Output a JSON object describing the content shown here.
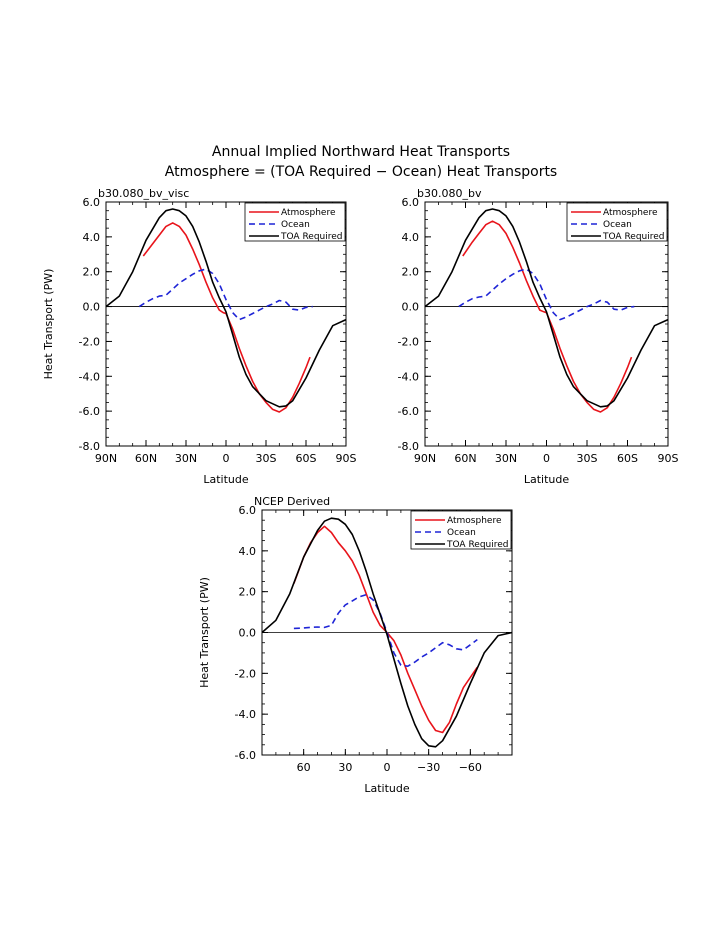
{
  "figure": {
    "title_line1": "Annual Implied Northward Heat Transports",
    "title_line2": "Atmosphere = (TOA Required − Ocean) Heat Transports"
  },
  "colors": {
    "atmosphere": "#e8141b",
    "ocean": "#1f25d6",
    "toa": "#000000",
    "zero_line": "#000000"
  },
  "chart_data": [
    {
      "type": "line",
      "title": "b30.080_bv_visc",
      "xlabel": "Latitude",
      "ylabel": "Heat Transport (PW)",
      "x_direction": "north-to-south",
      "xlim": [
        90,
        -90
      ],
      "ylim": [
        -8.0,
        6.0
      ],
      "x_ticks": [
        90,
        60,
        30,
        0,
        -30,
        -60,
        -90
      ],
      "x_tick_labels": [
        "90N",
        "60N",
        "30N",
        "0",
        "30S",
        "60S",
        "90S"
      ],
      "y_ticks": [
        6,
        4,
        2,
        0,
        -2,
        -4,
        -6,
        -8
      ],
      "y_tick_labels": [
        "6.0",
        "4.0",
        "2.0",
        "0.0",
        "-2.0",
        "-4.0",
        "-6.0",
        "-8.0"
      ],
      "legend_position": "top-right",
      "series": [
        {
          "name": "Atmosphere",
          "style": "solid",
          "x": [
            62,
            55,
            50,
            45,
            40,
            35,
            30,
            25,
            20,
            15,
            10,
            5,
            2,
            0,
            -5,
            -10,
            -15,
            -20,
            -25,
            -30,
            -35,
            -40,
            -45,
            -50,
            -55,
            -60,
            -63
          ],
          "y": [
            2.9,
            3.6,
            4.1,
            4.6,
            4.8,
            4.6,
            4.1,
            3.3,
            2.4,
            1.4,
            0.5,
            -0.2,
            -0.35,
            -0.4,
            -1.3,
            -2.4,
            -3.4,
            -4.3,
            -5.0,
            -5.5,
            -5.9,
            -6.05,
            -5.8,
            -5.2,
            -4.4,
            -3.5,
            -2.9
          ]
        },
        {
          "name": "Ocean",
          "style": "dashed",
          "x": [
            65,
            60,
            55,
            50,
            45,
            40,
            35,
            30,
            25,
            20,
            15,
            10,
            5,
            0,
            -5,
            -10,
            -15,
            -20,
            -25,
            -30,
            -35,
            -40,
            -45,
            -50,
            -55,
            -60,
            -65
          ],
          "y": [
            0.0,
            0.25,
            0.45,
            0.6,
            0.65,
            1.0,
            1.35,
            1.6,
            1.85,
            2.05,
            2.15,
            1.9,
            1.3,
            0.4,
            -0.35,
            -0.75,
            -0.6,
            -0.4,
            -0.2,
            0.0,
            0.15,
            0.35,
            0.25,
            -0.15,
            -0.2,
            -0.05,
            0.0
          ]
        },
        {
          "name": "TOA Required",
          "style": "solid",
          "x": [
            90,
            80,
            70,
            60,
            50,
            45,
            40,
            35,
            30,
            25,
            20,
            15,
            10,
            5,
            0,
            -5,
            -10,
            -15,
            -20,
            -30,
            -40,
            -45,
            -50,
            -60,
            -70,
            -80,
            -90
          ],
          "y": [
            0.0,
            0.6,
            2.0,
            3.8,
            5.1,
            5.5,
            5.6,
            5.5,
            5.2,
            4.6,
            3.7,
            2.6,
            1.4,
            0.5,
            -0.3,
            -1.6,
            -2.9,
            -3.9,
            -4.6,
            -5.4,
            -5.75,
            -5.7,
            -5.4,
            -4.1,
            -2.5,
            -1.1,
            -0.75
          ]
        }
      ]
    },
    {
      "type": "line",
      "title": "b30.080_bv",
      "xlabel": "Latitude",
      "ylabel": "",
      "x_direction": "north-to-south",
      "xlim": [
        90,
        -90
      ],
      "ylim": [
        -8.0,
        6.0
      ],
      "x_ticks": [
        90,
        60,
        30,
        0,
        -30,
        -60,
        -90
      ],
      "x_tick_labels": [
        "90N",
        "60N",
        "30N",
        "0",
        "30S",
        "60S",
        "90S"
      ],
      "y_ticks": [
        6,
        4,
        2,
        0,
        -2,
        -4,
        -6,
        -8
      ],
      "y_tick_labels": [
        "6.0",
        "4.0",
        "2.0",
        "0.0",
        "-2.0",
        "-4.0",
        "-6.0",
        "-8.0"
      ],
      "legend_position": "top-right",
      "series": [
        {
          "name": "Atmosphere",
          "style": "solid",
          "x": [
            62,
            55,
            50,
            45,
            40,
            35,
            30,
            25,
            20,
            15,
            10,
            5,
            2,
            0,
            -5,
            -10,
            -15,
            -20,
            -25,
            -30,
            -35,
            -40,
            -45,
            -50,
            -55,
            -60,
            -63
          ],
          "y": [
            2.9,
            3.7,
            4.2,
            4.7,
            4.9,
            4.7,
            4.2,
            3.4,
            2.5,
            1.5,
            0.6,
            -0.2,
            -0.3,
            -0.35,
            -1.3,
            -2.4,
            -3.4,
            -4.3,
            -5.0,
            -5.5,
            -5.9,
            -6.05,
            -5.8,
            -5.2,
            -4.4,
            -3.5,
            -2.9
          ]
        },
        {
          "name": "Ocean",
          "style": "dashed",
          "x": [
            65,
            60,
            55,
            50,
            45,
            40,
            35,
            30,
            25,
            20,
            15,
            10,
            5,
            0,
            -5,
            -10,
            -15,
            -20,
            -25,
            -30,
            -35,
            -40,
            -45,
            -50,
            -55,
            -60,
            -65
          ],
          "y": [
            0.0,
            0.25,
            0.45,
            0.55,
            0.6,
            0.95,
            1.3,
            1.6,
            1.85,
            2.05,
            2.15,
            1.9,
            1.3,
            0.4,
            -0.35,
            -0.75,
            -0.6,
            -0.4,
            -0.2,
            0.0,
            0.15,
            0.35,
            0.25,
            -0.15,
            -0.2,
            -0.05,
            0.0
          ]
        },
        {
          "name": "TOA Required",
          "style": "solid",
          "x": [
            90,
            80,
            70,
            60,
            50,
            45,
            40,
            35,
            30,
            25,
            20,
            15,
            10,
            5,
            0,
            -5,
            -10,
            -15,
            -20,
            -30,
            -40,
            -45,
            -50,
            -60,
            -70,
            -80,
            -90
          ],
          "y": [
            0.0,
            0.6,
            2.0,
            3.8,
            5.1,
            5.5,
            5.6,
            5.5,
            5.2,
            4.6,
            3.7,
            2.6,
            1.4,
            0.5,
            -0.3,
            -1.6,
            -2.9,
            -3.9,
            -4.6,
            -5.4,
            -5.75,
            -5.7,
            -5.4,
            -4.1,
            -2.5,
            -1.1,
            -0.75
          ]
        }
      ]
    },
    {
      "type": "line",
      "title": "NCEP Derived",
      "xlabel": "Latitude",
      "ylabel": "Heat Transport (PW)",
      "x_direction": "north-to-south",
      "xlim": [
        90,
        -90
      ],
      "ylim": [
        -6.0,
        6.0
      ],
      "x_ticks": [
        60,
        30,
        0,
        -30,
        -60
      ],
      "x_tick_labels": [
        "60",
        "30",
        "0",
        "−30",
        "−60"
      ],
      "y_ticks": [
        6,
        4,
        2,
        0,
        -2,
        -4,
        -6
      ],
      "y_tick_labels": [
        "6.0",
        "4.0",
        "2.0",
        "0.0",
        "-2.0",
        "-4.0",
        "-6.0"
      ],
      "legend_position": "top-right",
      "series": [
        {
          "name": "Atmosphere",
          "style": "solid",
          "x": [
            67,
            60,
            55,
            50,
            45,
            40,
            35,
            30,
            25,
            20,
            15,
            10,
            5,
            0,
            -5,
            -10,
            -15,
            -20,
            -25,
            -30,
            -35,
            -40,
            -45,
            -50,
            -55,
            -60,
            -65
          ],
          "y": [
            2.4,
            3.7,
            4.4,
            4.9,
            5.2,
            4.9,
            4.4,
            4.0,
            3.5,
            2.8,
            1.9,
            1.0,
            0.35,
            0.0,
            -0.4,
            -1.1,
            -2.0,
            -2.8,
            -3.6,
            -4.3,
            -4.8,
            -4.9,
            -4.4,
            -3.5,
            -2.7,
            -2.2,
            -1.7
          ]
        },
        {
          "name": "Ocean",
          "style": "dashed",
          "x": [
            67,
            60,
            55,
            50,
            45,
            40,
            35,
            30,
            25,
            20,
            15,
            10,
            5,
            0,
            -5,
            -10,
            -15,
            -20,
            -25,
            -30,
            -35,
            -40,
            -45,
            -50,
            -55,
            -60,
            -65
          ],
          "y": [
            0.2,
            0.22,
            0.25,
            0.27,
            0.25,
            0.35,
            0.95,
            1.35,
            1.55,
            1.75,
            1.85,
            1.6,
            0.95,
            0.0,
            -1.0,
            -1.6,
            -1.65,
            -1.45,
            -1.2,
            -1.0,
            -0.75,
            -0.5,
            -0.6,
            -0.8,
            -0.85,
            -0.6,
            -0.35
          ]
        },
        {
          "name": "TOA Required",
          "style": "solid",
          "x": [
            90,
            80,
            70,
            60,
            50,
            45,
            40,
            35,
            30,
            25,
            20,
            15,
            10,
            5,
            0,
            -5,
            -10,
            -15,
            -20,
            -25,
            -30,
            -35,
            -40,
            -50,
            -60,
            -70,
            -80,
            -90
          ],
          "y": [
            0.0,
            0.6,
            1.9,
            3.7,
            5.0,
            5.45,
            5.6,
            5.55,
            5.3,
            4.8,
            4.0,
            3.0,
            1.9,
            0.9,
            -0.1,
            -1.3,
            -2.5,
            -3.6,
            -4.5,
            -5.2,
            -5.55,
            -5.6,
            -5.3,
            -4.1,
            -2.5,
            -1.0,
            -0.15,
            0.0
          ]
        }
      ]
    }
  ]
}
